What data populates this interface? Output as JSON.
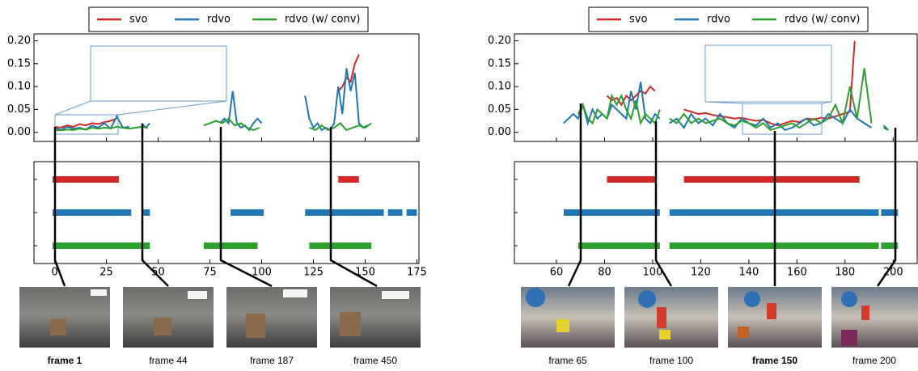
{
  "chart_data": [
    {
      "type": "line",
      "xlim": [
        -10,
        176
      ],
      "ylim": [
        -0.02,
        0.215
      ],
      "xticks": [
        0,
        25,
        50,
        75,
        100,
        125,
        150,
        175
      ],
      "yticks": [
        {
          "value": 0,
          "label": "0.00"
        },
        0.05,
        {
          "value": 0.1,
          "label": "0.10"
        },
        0.15,
        {
          "value": 0.2,
          "label": "0.20"
        }
      ],
      "series": [
        {
          "name": "svo",
          "color": "#d62728",
          "x": [
            0,
            3,
            6,
            9,
            12,
            15,
            18,
            21,
            24,
            27,
            30,
            33,
            137,
            139,
            141,
            143,
            145,
            147
          ],
          "values": [
            0.012,
            0.01,
            0.015,
            0.012,
            0.018,
            0.015,
            0.02,
            0.018,
            0.022,
            0.025,
            0.03,
            null,
            0.09,
            0.1,
            0.12,
            0.11,
            0.15,
            0.17
          ],
          "segments": [
            [
              -1,
              31
            ],
            [
              137,
              147
            ]
          ]
        },
        {
          "name": "rdvo",
          "color": "#1f77b4",
          "x": [
            0,
            3,
            6,
            9,
            12,
            15,
            18,
            21,
            24,
            27,
            30,
            33,
            36,
            39,
            42,
            44,
            46,
            48,
            80,
            82,
            84,
            86,
            88,
            90,
            92,
            94,
            96,
            98,
            100,
            102,
            121,
            123,
            125,
            127,
            129,
            131,
            133,
            135,
            137,
            139,
            141,
            143,
            145,
            147,
            149,
            151
          ],
          "values": [
            0.01,
            0.005,
            0.012,
            0.008,
            0.01,
            0.006,
            0.015,
            0.01,
            0.02,
            0.008,
            0.035,
            0.01,
            0.012,
            null,
            0.02,
            0.01,
            0.02,
            null,
            0.02,
            0.03,
            0.02,
            0.09,
            0.02,
            0.01,
            0.015,
            0.005,
            0.02,
            0.03,
            0.02,
            null,
            0.08,
            0.03,
            0.01,
            0.02,
            0.005,
            0.01,
            0.005,
            0.02,
            0.1,
            0.04,
            0.14,
            0.09,
            0.13,
            0.02,
            0.01,
            0.015
          ],
          "segments": [
            [
              -1,
              37
            ],
            [
              42,
              46
            ],
            [
              85,
              101
            ],
            [
              121,
              159
            ],
            [
              161,
              168
            ],
            [
              170,
              175
            ]
          ]
        },
        {
          "name": "rdvo (w/ conv)",
          "color": "#2ca02c",
          "x": [
            0,
            3,
            6,
            9,
            12,
            15,
            18,
            21,
            24,
            27,
            30,
            33,
            36,
            39,
            42,
            45,
            47,
            72,
            75,
            78,
            81,
            84,
            87,
            90,
            93,
            96,
            99,
            101,
            123,
            126,
            129,
            132,
            135,
            138,
            141,
            144,
            147,
            150,
            153
          ],
          "values": [
            0.005,
            0.004,
            0.006,
            0.005,
            0.008,
            0.006,
            0.01,
            0.008,
            0.01,
            0.009,
            0.012,
            0.01,
            0.008,
            0.01,
            0.012,
            0.01,
            null,
            0.015,
            0.02,
            0.025,
            0.02,
            0.03,
            0.015,
            0.02,
            0.01,
            0.005,
            0.01,
            null,
            0.01,
            0.005,
            0.015,
            0.005,
            0.01,
            0.02,
            0.005,
            0.01,
            0.015,
            0.01,
            0.02
          ],
          "segments": [
            [
              -1,
              46
            ],
            [
              72,
              98
            ],
            [
              123,
              153
            ]
          ]
        }
      ]
    },
    {
      "type": "line",
      "xlim": [
        42.5,
        210
      ],
      "ylim": [
        -0.02,
        0.215
      ],
      "xticks": [
        60,
        80,
        100,
        120,
        140,
        160,
        180,
        200
      ],
      "yticks": [
        {
          "value": 0,
          "label": "0.00"
        },
        0.05,
        {
          "value": 0.1,
          "label": "0.10"
        },
        0.15,
        {
          "value": 0.2,
          "label": "0.20"
        }
      ],
      "series": [
        {
          "name": "svo",
          "color": "#d62728",
          "x": [
            81,
            83,
            85,
            87,
            89,
            91,
            93,
            95,
            97,
            99,
            101,
            103,
            113,
            116,
            119,
            122,
            125,
            128,
            131,
            134,
            137,
            140,
            143,
            146,
            149,
            152,
            155,
            158,
            161,
            164,
            167,
            170,
            173,
            176,
            179,
            182,
            184
          ],
          "values": [
            0.08,
            0.07,
            0.075,
            0.06,
            0.08,
            0.07,
            0.08,
            0.09,
            0.085,
            0.1,
            0.09,
            null,
            0.05,
            0.045,
            0.04,
            0.042,
            0.038,
            0.035,
            0.033,
            0.03,
            0.032,
            0.028,
            0.025,
            0.027,
            0.02,
            0.015,
            0.02,
            0.025,
            0.022,
            0.03,
            0.028,
            0.032,
            0.03,
            0.035,
            0.04,
            0.045,
            0.2
          ],
          "segments": [
            [
              81,
              101
            ],
            [
              113,
              186
            ]
          ]
        },
        {
          "name": "rdvo",
          "color": "#1f77b4",
          "x": [
            63,
            65,
            67,
            69,
            71,
            73,
            75,
            77,
            79,
            81,
            83,
            85,
            87,
            89,
            91,
            93,
            95,
            97,
            99,
            101,
            103,
            105,
            107,
            110,
            113,
            116,
            119,
            122,
            125,
            128,
            131,
            134,
            137,
            140,
            143,
            146,
            149,
            152,
            155,
            158,
            161,
            164,
            167,
            170,
            173,
            176,
            179,
            182,
            185,
            188,
            191,
            193,
            196,
            198
          ],
          "values": [
            0.02,
            0.03,
            0.04,
            0.03,
            0.06,
            0.02,
            0.05,
            0.03,
            0.04,
            0.03,
            0.06,
            0.05,
            0.04,
            0.03,
            0.09,
            0.05,
            0.11,
            0.03,
            0.02,
            0.04,
            0.03,
            null,
            0.02,
            0.03,
            0.01,
            0.04,
            0.02,
            0.03,
            0.015,
            0.04,
            0.02,
            0.01,
            0.03,
            0.02,
            0.015,
            0.03,
            0.01,
            0.02,
            0.005,
            0.01,
            0.02,
            0.03,
            0.015,
            0.02,
            0.04,
            0.03,
            0.02,
            0.05,
            0.03,
            0.02,
            0.01,
            null,
            0.015,
            0.005
          ],
          "segments": [
            [
              63,
              103
            ],
            [
              107,
              194
            ],
            [
              195,
              202
            ]
          ]
        },
        {
          "name": "rdvo (w/ conv)",
          "color": "#2ca02c",
          "x": [
            69,
            71,
            73,
            75,
            77,
            79,
            81,
            83,
            85,
            87,
            89,
            91,
            93,
            95,
            97,
            99,
            101,
            103,
            105,
            107,
            110,
            113,
            116,
            119,
            122,
            125,
            128,
            131,
            134,
            137,
            140,
            143,
            146,
            149,
            152,
            155,
            158,
            161,
            164,
            167,
            170,
            173,
            176,
            179,
            182,
            185,
            188,
            191,
            193,
            196,
            198
          ],
          "values": [
            0.04,
            0.06,
            0.03,
            0.02,
            0.05,
            0.04,
            0.03,
            0.08,
            0.06,
            0.08,
            0.05,
            0.03,
            0.07,
            0.02,
            0.04,
            0.03,
            0.02,
            0.05,
            null,
            0.03,
            0.02,
            0.04,
            0.02,
            0.03,
            0.02,
            0.025,
            0.03,
            0.02,
            0.015,
            0.025,
            0.02,
            0.01,
            0.02,
            0.005,
            0.01,
            0.015,
            0.02,
            0.01,
            0.02,
            0.03,
            0.02,
            0.03,
            0.06,
            0.02,
            0.1,
            0.03,
            0.14,
            0.02,
            null,
            0.01,
            0.005
          ],
          "segments": [
            [
              69,
              103
            ],
            [
              107,
              194
            ],
            [
              195,
              202
            ]
          ]
        }
      ]
    }
  ],
  "frame_labels": [
    [
      "frame 1",
      "frame 44",
      "frame 187",
      "frame 450"
    ],
    [
      "frame 65",
      "frame 100",
      "frame 150",
      "frame 200"
    ]
  ]
}
